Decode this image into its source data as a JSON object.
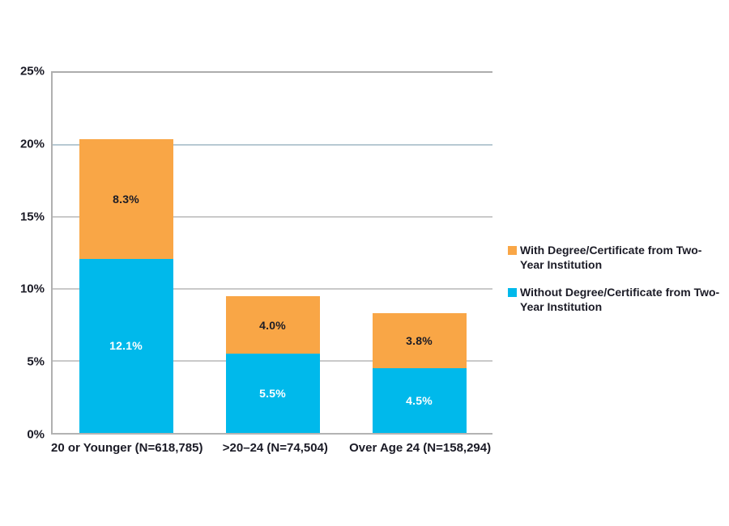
{
  "chart_data": {
    "type": "bar",
    "stacked": true,
    "title": "",
    "xlabel": "",
    "ylabel": "",
    "grid": true,
    "legend_position": "right",
    "categories": [
      "20 or Younger (N=618,785)",
      ">20–24 (N=74,504)",
      "Over Age 24 (N=158,294)"
    ],
    "series": [
      {
        "name": "Without Degree/Certificate from Two-Year Institution",
        "color": "#00B9EB",
        "label_color": "#FFFFFF",
        "values": [
          12.1,
          5.5,
          4.5
        ],
        "labels": [
          "12.1%",
          "5.5%",
          "4.5%"
        ]
      },
      {
        "name": "With Degree/Certificate from Two-Year Institution",
        "color": "#F9A646",
        "label_color": "#1C1C26",
        "values": [
          8.3,
          4.0,
          3.8
        ],
        "labels": [
          "8.3%",
          "4.0%",
          "3.8%"
        ]
      }
    ],
    "totals": [
      20.4,
      9.5,
      8.3
    ],
    "y_axis": {
      "min": 0,
      "max": 25,
      "ticks": [
        {
          "value": 0,
          "label": "0%"
        },
        {
          "value": 5,
          "label": "5%"
        },
        {
          "value": 10,
          "label": "10%"
        },
        {
          "value": 15,
          "label": "15%"
        },
        {
          "value": 20,
          "label": "20%"
        },
        {
          "value": 25,
          "label": "25%"
        }
      ]
    },
    "gridlines": [
      {
        "value": 5,
        "color": "#C9C9C9"
      },
      {
        "value": 10,
        "color": "#C9C9C9"
      },
      {
        "value": 15,
        "color": "#C9C9C9"
      },
      {
        "value": 20,
        "color": "#B7C9D3"
      }
    ],
    "legend": [
      {
        "label": "With Degree/Certificate from Two-Year Institution",
        "color": "#F9A646"
      },
      {
        "label": "Without Degree/Certificate from Two-Year Institution",
        "color": "#00B9EB"
      }
    ]
  },
  "colors": {
    "orange_series": "#F9A646",
    "blue_series": "#00B9EB",
    "axis_text": "#1B1B26",
    "gridline_gray": "#C9C9C9",
    "gridline_blue": "#B7C9D3",
    "plot_border": "#B0B0B0"
  }
}
